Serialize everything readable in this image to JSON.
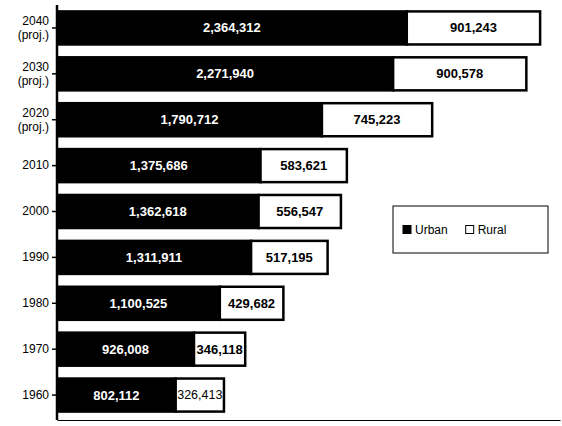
{
  "chart_data": {
    "type": "bar",
    "orientation": "horizontal",
    "stacked": true,
    "data_labels": true,
    "tick_labels": "y",
    "legend": "right",
    "categories": [
      "1960",
      "1970",
      "1980",
      "1990",
      "2000",
      "2010",
      "2020 (proj.)",
      "2030 (proj.)",
      "2040 (proj.)"
    ],
    "series": [
      {
        "name": "Urban",
        "color": "#000000",
        "values": [
          802112,
          926008,
          1100525,
          1311911,
          1362618,
          1375686,
          1790712,
          2271940,
          2364312
        ],
        "value_labels": [
          "802,112",
          "926,008",
          "1,100,525",
          "1,311,911",
          "1,362,618",
          "1,375,686",
          "1,790,712",
          "2,271,940",
          "2,364,312"
        ]
      },
      {
        "name": "Rural",
        "color": "#ffffff",
        "values": [
          326413,
          346118,
          429682,
          517195,
          556547,
          583621,
          745223,
          900578,
          901243
        ],
        "value_labels": [
          "326,413",
          "346,118",
          "429,682",
          "517,195",
          "556,547",
          "583,621",
          "745,223",
          "900,578",
          "901,243"
        ]
      }
    ],
    "xlim": [
      0,
      3400000
    ],
    "xticks": []
  }
}
